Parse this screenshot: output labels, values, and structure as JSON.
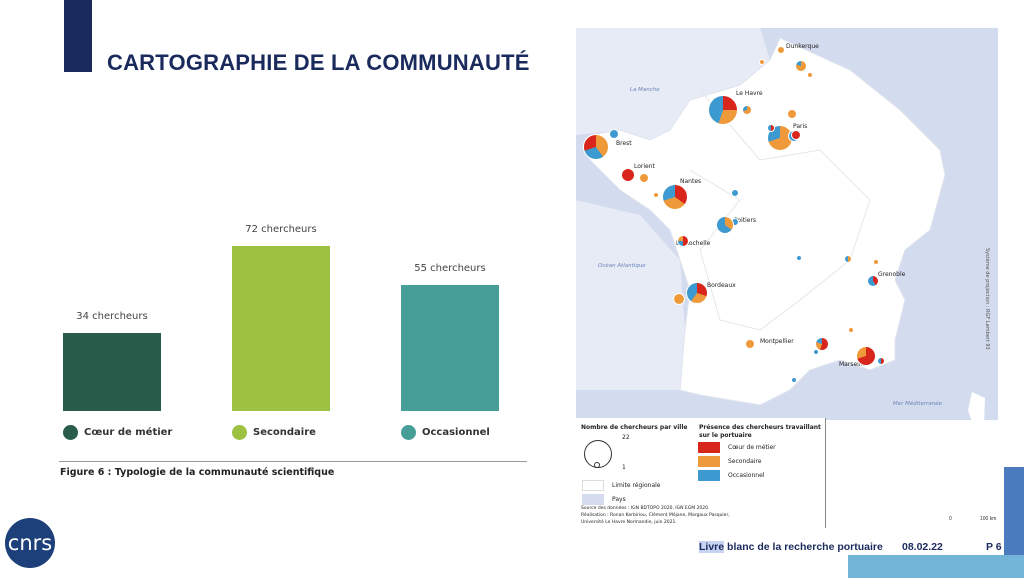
{
  "title": "CARTOGRAPHIE DE LA COMMUNAUTÉ",
  "chart_data": {
    "type": "bar",
    "categories": [
      "Cœur de métier",
      "Secondaire",
      "Occasionnel"
    ],
    "values": [
      34,
      72,
      55
    ],
    "data_labels": [
      "34 chercheurs",
      "72 chercheurs",
      "55 chercheurs"
    ],
    "colors": [
      "#2a5c4c",
      "#9dc242",
      "#479e98"
    ],
    "legend": "bottom",
    "grid": false,
    "caption": "Figure 6 : Typologie de la communauté scientifique"
  },
  "map": {
    "cities": [
      "Dunkerque",
      "Le Havre",
      "Paris",
      "Brest",
      "Lorient",
      "Nantes",
      "Poitiers",
      "La Rochelle",
      "Grenoble",
      "Bordeaux",
      "Montpellier",
      "Marseille"
    ],
    "seas": [
      "La Manche",
      "Océan Atlantique",
      "Mer Méditerranée"
    ],
    "projection": "Système de projection : RGF Lambert 93",
    "scale": {
      "zero": "0",
      "distance": "100 km"
    },
    "legend": {
      "size_title": "Nombre de chercheurs par ville",
      "size_max": "22",
      "size_min": "1",
      "presence_title": "Présence des chercheurs travaillant sur le portuaire",
      "categories": [
        {
          "label": "Cœur de métier",
          "color": "#d9261c"
        },
        {
          "label": "Secondaire",
          "color": "#ef9a3a"
        },
        {
          "label": "Occasionnel",
          "color": "#3d9ad1"
        }
      ],
      "regional": "Limite régionale",
      "country": "Pays",
      "source": "Source des données : IGN BDTOPO 2020, IGN EGM 2020.",
      "credits": "Réalisation : Ronan Kerbiriou, Clément Méjane, Margaux Pasquier,",
      "credits2": "Université Le Havre Normandie, juin 2021."
    }
  },
  "footer": {
    "highlight": "Livre",
    "title": " blanc de la recherche portuaire",
    "date": "08.02.22",
    "page": "P 6"
  },
  "logo": "cnrs"
}
